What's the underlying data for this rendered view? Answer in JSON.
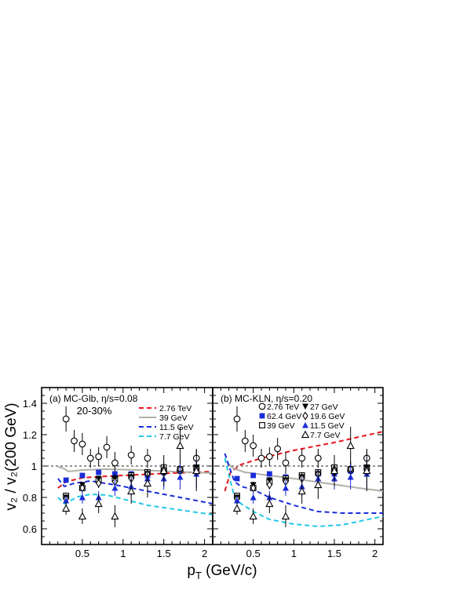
{
  "figure": {
    "ylabel": "v₂ / v₂(200 GeV)",
    "xlabel": "pT (GeV/c)",
    "reference_line": 1.0
  },
  "chart_data": [
    {
      "type": "scatter",
      "panel_label": "(a) MC-Glb, η/s=0.08",
      "centrality": "20-30%",
      "xlim": [
        0,
        2.1
      ],
      "ylim": [
        0.5,
        1.5
      ],
      "xticks": [
        "0.5",
        "1",
        "1.5",
        "2"
      ],
      "xtick_values": [
        0.5,
        1.0,
        1.5,
        2.0
      ],
      "yticks": [
        "0.6",
        "0.8",
        "1",
        "1.2",
        "1.4"
      ],
      "ytick_values": [
        0.6,
        0.8,
        1.0,
        1.2,
        1.4
      ],
      "grid": false,
      "legend_position": "top-right",
      "legend": [
        {
          "label": "2.76 TeV",
          "curve": "2.76TeV"
        },
        {
          "label": "39 GeV",
          "curve": "39GeV"
        },
        {
          "label": "11.5 GeV",
          "curve": "11.5GeV"
        },
        {
          "label": "7.7 GeV",
          "curve": "7.7GeV"
        }
      ],
      "curves": [
        {
          "name": "2.76TeV",
          "color": "#e8141b",
          "style": "dash",
          "x": [
            0.2,
            0.3,
            0.5,
            0.8,
            1.2,
            1.6,
            2.1
          ],
          "y": [
            0.86,
            0.9,
            0.925,
            0.935,
            0.945,
            0.955,
            0.965
          ]
        },
        {
          "name": "39GeV",
          "color": "#b0b0a8",
          "style": "solid",
          "x": [
            0.2,
            0.27,
            0.33,
            0.5,
            0.8,
            1.2,
            1.6,
            2.1
          ],
          "y": [
            0.995,
            0.985,
            0.965,
            0.975,
            0.98,
            0.975,
            0.965,
            0.955
          ]
        },
        {
          "name": "11.5GeV",
          "color": "#1a2cd8",
          "style": "dash",
          "x": [
            0.2,
            0.28,
            0.4,
            0.6,
            0.9,
            1.3,
            1.7,
            2.1
          ],
          "y": [
            0.92,
            0.87,
            0.89,
            0.905,
            0.88,
            0.84,
            0.8,
            0.76
          ]
        },
        {
          "name": "7.7GeV",
          "color": "#22c8e8",
          "style": "dash",
          "x": [
            0.2,
            0.28,
            0.45,
            0.6,
            0.8,
            1.0,
            1.3,
            1.7,
            2.1
          ],
          "y": [
            0.8,
            0.76,
            0.805,
            0.82,
            0.815,
            0.79,
            0.75,
            0.72,
            0.69
          ]
        }
      ],
      "series": [
        {
          "energy": "2.76TeV",
          "marker": "circle-open",
          "color": "#000000",
          "x": [
            0.3,
            0.4,
            0.5,
            0.6,
            0.7,
            0.8,
            0.9,
            1.1,
            1.3,
            1.5,
            1.7,
            1.9
          ],
          "y": [
            1.3,
            1.16,
            1.14,
            1.05,
            1.06,
            1.12,
            1.02,
            1.07,
            1.05,
            0.96,
            0.97,
            1.05
          ],
          "err": [
            0.08,
            0.07,
            0.07,
            0.06,
            0.06,
            0.07,
            0.07,
            0.06,
            0.06,
            0.05,
            0.06,
            0.06
          ]
        },
        {
          "energy": "62.4GeV",
          "marker": "square-filled",
          "color": "#1a2cd8",
          "x": [
            0.3,
            0.5,
            0.7,
            0.9,
            1.1,
            1.3,
            1.5,
            1.7,
            1.9
          ],
          "y": [
            0.91,
            0.94,
            0.96,
            0.95,
            0.95,
            0.94,
            0.96,
            0.975,
            0.985
          ],
          "err": [
            0.01,
            0.01,
            0.01,
            0.01,
            0.01,
            0.01,
            0.01,
            0.01,
            0.01
          ]
        },
        {
          "energy": "39GeV",
          "marker": "square-open",
          "color": "#000000",
          "x": [
            0.3,
            0.5,
            0.7,
            0.9,
            1.1,
            1.3,
            1.5,
            1.7,
            1.9
          ],
          "y": [
            0.81,
            0.86,
            0.91,
            0.92,
            0.94,
            0.96,
            0.99,
            0.98,
            0.99
          ],
          "err": [
            0.02,
            0.02,
            0.02,
            0.02,
            0.02,
            0.02,
            0.02,
            0.02,
            0.02
          ]
        },
        {
          "energy": "27GeV",
          "marker": "triangle-down-filled",
          "color": "#000000",
          "x": [
            0.3,
            0.5,
            0.7,
            0.9,
            1.1,
            1.3,
            1.5,
            1.7,
            1.9
          ],
          "y": [
            0.8,
            0.88,
            0.92,
            0.92,
            0.93,
            0.95,
            0.95,
            0.97,
            0.99
          ],
          "err": [
            0.02,
            0.02,
            0.02,
            0.03,
            0.03,
            0.03,
            0.03,
            0.03,
            0.04
          ]
        },
        {
          "energy": "19.6GeV",
          "marker": "diamond-open",
          "color": "#000000",
          "x": [
            0.3,
            0.5,
            0.7,
            0.9,
            1.1,
            1.3,
            1.5,
            1.7,
            1.9
          ],
          "y": [
            0.79,
            0.86,
            0.89,
            0.9,
            0.92,
            0.95,
            0.98,
            0.98,
            0.98
          ],
          "err": [
            0.02,
            0.02,
            0.03,
            0.03,
            0.03,
            0.03,
            0.04,
            0.04,
            0.05
          ]
        },
        {
          "energy": "11.5GeV",
          "marker": "triangle-up-filled",
          "color": "#1a2cd8",
          "x": [
            0.3,
            0.5,
            0.7,
            0.9,
            1.1,
            1.3,
            1.5,
            1.7,
            1.9
          ],
          "y": [
            0.78,
            0.8,
            0.8,
            0.86,
            0.87,
            0.92,
            0.92,
            0.93,
            0.95
          ],
          "err": [
            0.03,
            0.04,
            0.04,
            0.05,
            0.06,
            0.06,
            0.07,
            0.08,
            0.09
          ]
        },
        {
          "energy": "7.7GeV",
          "marker": "triangle-up-open",
          "color": "#000000",
          "x": [
            0.3,
            0.5,
            0.7,
            0.9,
            1.1,
            1.3,
            1.5,
            1.7,
            1.9
          ],
          "y": [
            0.73,
            0.68,
            0.76,
            0.68,
            0.84,
            0.89,
            0.97,
            1.13,
            0.97
          ],
          "err": [
            0.04,
            0.05,
            0.06,
            0.07,
            0.08,
            0.09,
            0.1,
            0.12,
            0.13
          ]
        }
      ]
    },
    {
      "type": "scatter",
      "panel_label": "(b) MC-KLN, η/s=0.20",
      "xlim": [
        0,
        2.1
      ],
      "ylim": [
        0.5,
        1.5
      ],
      "xticks": [
        "0.5",
        "1",
        "1.5",
        "2"
      ],
      "xtick_values": [
        0.5,
        1.0,
        1.5,
        2.0
      ],
      "yticks": [],
      "ytick_values": [
        0.6,
        0.8,
        1.0,
        1.2,
        1.4
      ],
      "grid": false,
      "legend_position": "top-right",
      "legend": [
        {
          "label": "2.76 TeV",
          "series": "2.76TeV"
        },
        {
          "label": "27 GeV",
          "series": "27GeV"
        },
        {
          "label": "62.4 GeV",
          "series": "62.4GeV"
        },
        {
          "label": "19.6 GeV",
          "series": "19.6GeV"
        },
        {
          "label": "39 GeV",
          "series": "39GeV"
        },
        {
          "label": "11.5 GeV",
          "series": "11.5GeV"
        },
        {
          "label": "7.7 GeV",
          "series": "7.7GeV"
        }
      ],
      "curves": [
        {
          "name": "2.76TeV",
          "color": "#e8141b",
          "style": "dash",
          "x": [
            0.15,
            0.22,
            0.35,
            0.6,
            1.0,
            1.5,
            2.1
          ],
          "y": [
            0.84,
            0.96,
            1.01,
            1.05,
            1.1,
            1.15,
            1.22
          ]
        },
        {
          "name": "39GeV",
          "color": "#b0b0a8",
          "style": "solid",
          "x": [
            0.15,
            0.25,
            0.4,
            0.7,
            1.0,
            1.4,
            1.8,
            2.1
          ],
          "y": [
            1.04,
            0.985,
            0.96,
            0.94,
            0.92,
            0.89,
            0.86,
            0.84
          ]
        },
        {
          "name": "11.5GeV",
          "color": "#1a2cd8",
          "style": "dash",
          "x": [
            0.15,
            0.2,
            0.27,
            0.35,
            0.5,
            0.7,
            1.0,
            1.3,
            1.6,
            2.1
          ],
          "y": [
            1.08,
            1.0,
            0.9,
            0.87,
            0.85,
            0.8,
            0.75,
            0.71,
            0.7,
            0.7
          ]
        },
        {
          "name": "7.7GeV",
          "color": "#22c8e8",
          "style": "dash",
          "x": [
            0.15,
            0.2,
            0.27,
            0.35,
            0.5,
            0.7,
            1.0,
            1.3,
            1.6,
            2.1
          ],
          "y": [
            1.05,
            0.94,
            0.8,
            0.76,
            0.71,
            0.66,
            0.63,
            0.615,
            0.625,
            0.68
          ]
        }
      ],
      "series": [
        {
          "energy": "2.76TeV",
          "marker": "circle-open",
          "color": "#000000",
          "x": [
            0.3,
            0.4,
            0.5,
            0.6,
            0.7,
            0.8,
            0.9,
            1.1,
            1.3,
            1.5,
            1.7,
            1.9
          ],
          "y": [
            1.3,
            1.16,
            1.13,
            1.05,
            1.06,
            1.11,
            1.02,
            1.05,
            1.05,
            0.97,
            0.97,
            1.05
          ],
          "err": [
            0.08,
            0.07,
            0.07,
            0.06,
            0.06,
            0.07,
            0.07,
            0.06,
            0.06,
            0.05,
            0.06,
            0.06
          ]
        },
        {
          "energy": "62.4GeV",
          "marker": "square-filled",
          "color": "#1a2cd8",
          "x": [
            0.3,
            0.5,
            0.7,
            0.9,
            1.1,
            1.3,
            1.5,
            1.7,
            1.9
          ],
          "y": [
            0.92,
            0.94,
            0.95,
            0.93,
            0.94,
            0.95,
            0.95,
            0.97,
            0.98
          ],
          "err": [
            0.01,
            0.01,
            0.01,
            0.01,
            0.01,
            0.01,
            0.01,
            0.01,
            0.01
          ]
        },
        {
          "energy": "39GeV",
          "marker": "square-open",
          "color": "#000000",
          "x": [
            0.3,
            0.5,
            0.7,
            0.9,
            1.1,
            1.3,
            1.5,
            1.7,
            1.9
          ],
          "y": [
            0.81,
            0.86,
            0.9,
            0.92,
            0.94,
            0.96,
            0.99,
            0.98,
            0.99
          ],
          "err": [
            0.02,
            0.02,
            0.02,
            0.02,
            0.02,
            0.02,
            0.02,
            0.02,
            0.02
          ]
        },
        {
          "energy": "27GeV",
          "marker": "triangle-down-filled",
          "color": "#000000",
          "x": [
            0.3,
            0.5,
            0.7,
            0.9,
            1.1,
            1.3,
            1.5,
            1.7,
            1.9
          ],
          "y": [
            0.8,
            0.88,
            0.91,
            0.91,
            0.93,
            0.95,
            0.95,
            0.97,
            0.99
          ],
          "err": [
            0.02,
            0.02,
            0.02,
            0.03,
            0.03,
            0.03,
            0.03,
            0.03,
            0.04
          ]
        },
        {
          "energy": "19.6GeV",
          "marker": "diamond-open",
          "color": "#000000",
          "x": [
            0.3,
            0.5,
            0.7,
            0.9,
            1.1,
            1.3,
            1.5,
            1.7,
            1.9
          ],
          "y": [
            0.79,
            0.86,
            0.88,
            0.9,
            0.92,
            0.95,
            0.98,
            0.98,
            0.98
          ],
          "err": [
            0.02,
            0.02,
            0.03,
            0.03,
            0.03,
            0.03,
            0.04,
            0.04,
            0.05
          ]
        },
        {
          "energy": "11.5GeV",
          "marker": "triangle-up-filled",
          "color": "#1a2cd8",
          "x": [
            0.3,
            0.5,
            0.7,
            0.9,
            1.1,
            1.3,
            1.5,
            1.7,
            1.9
          ],
          "y": [
            0.78,
            0.8,
            0.8,
            0.86,
            0.87,
            0.92,
            0.92,
            0.93,
            0.95
          ],
          "err": [
            0.03,
            0.04,
            0.04,
            0.05,
            0.06,
            0.06,
            0.07,
            0.08,
            0.09
          ]
        },
        {
          "energy": "7.7GeV",
          "marker": "triangle-up-open",
          "color": "#000000",
          "x": [
            0.3,
            0.5,
            0.7,
            0.9,
            1.1,
            1.3,
            1.5,
            1.7,
            1.9
          ],
          "y": [
            0.73,
            0.68,
            0.76,
            0.68,
            0.84,
            0.88,
            0.97,
            1.13,
            0.97
          ],
          "err": [
            0.04,
            0.05,
            0.06,
            0.07,
            0.08,
            0.09,
            0.1,
            0.12,
            0.13
          ]
        }
      ]
    }
  ]
}
